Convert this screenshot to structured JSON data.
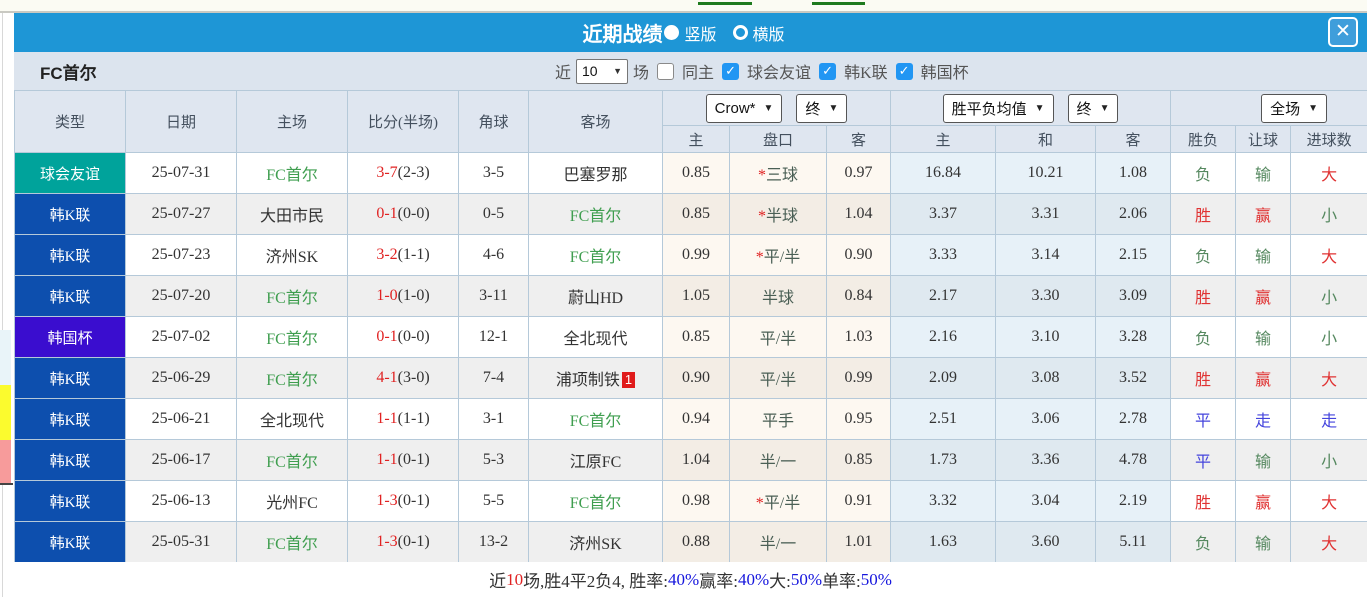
{
  "modal": {
    "title": "近期战绩",
    "view_vertical": "竖版",
    "view_horizontal": "横版",
    "close": "✕"
  },
  "filter": {
    "team": "FC首尔",
    "recent_label": "近",
    "recent_value": "10",
    "matches_label": "场",
    "same_home_label": "同主",
    "leagues": [
      "球会友谊",
      "韩K联",
      "韩国杯"
    ]
  },
  "table": {
    "main_headers": [
      "类型",
      "日期",
      "主场",
      "比分(半场)",
      "角球",
      "客场"
    ],
    "selects": {
      "odds_company": "Crow*",
      "odds_time1": "终",
      "avg_type": "胜平负均值",
      "avg_time": "终",
      "scope": "全场"
    },
    "sub_headers": [
      "主",
      "盘口",
      "客",
      "主",
      "和",
      "客",
      "胜负",
      "让球",
      "进球数"
    ]
  },
  "rows": [
    {
      "type": "球会友谊",
      "type_color": "teal",
      "date": "25-07-31",
      "home": "FC首尔",
      "home_fc": true,
      "score": "3-7",
      "half": "(2-3)",
      "corner": "3-5",
      "away": "巴塞罗那",
      "away_fc": false,
      "away_badge": "",
      "o_home": "0.85",
      "pan_star": true,
      "pan": "三球",
      "o_away": "0.97",
      "avg_home": "16.84",
      "avg_draw": "10.21",
      "avg_away": "1.08",
      "spf": {
        "t": "负",
        "c": "green"
      },
      "rq": {
        "t": "输",
        "c": "green"
      },
      "jq": {
        "t": "大",
        "c": "red"
      }
    },
    {
      "type": "韩K联",
      "type_color": "blue",
      "date": "25-07-27",
      "home": "大田市民",
      "home_fc": false,
      "score": "0-1",
      "half": "(0-0)",
      "corner": "0-5",
      "away": "FC首尔",
      "away_fc": true,
      "away_badge": "",
      "o_home": "0.85",
      "pan_star": true,
      "pan": "半球",
      "o_away": "1.04",
      "avg_home": "3.37",
      "avg_draw": "3.31",
      "avg_away": "2.06",
      "spf": {
        "t": "胜",
        "c": "red"
      },
      "rq": {
        "t": "赢",
        "c": "red"
      },
      "jq": {
        "t": "小",
        "c": "green"
      }
    },
    {
      "type": "韩K联",
      "type_color": "blue",
      "date": "25-07-23",
      "home": "济州SK",
      "home_fc": false,
      "score": "3-2",
      "half": "(1-1)",
      "corner": "4-6",
      "away": "FC首尔",
      "away_fc": true,
      "away_badge": "",
      "o_home": "0.99",
      "pan_star": true,
      "pan": "平/半",
      "o_away": "0.90",
      "avg_home": "3.33",
      "avg_draw": "3.14",
      "avg_away": "2.15",
      "spf": {
        "t": "负",
        "c": "green"
      },
      "rq": {
        "t": "输",
        "c": "green"
      },
      "jq": {
        "t": "大",
        "c": "red"
      }
    },
    {
      "type": "韩K联",
      "type_color": "blue",
      "date": "25-07-20",
      "home": "FC首尔",
      "home_fc": true,
      "score": "1-0",
      "half": "(1-0)",
      "corner": "3-11",
      "away": "蔚山HD",
      "away_fc": false,
      "away_badge": "",
      "o_home": "1.05",
      "pan_star": false,
      "pan": "半球",
      "o_away": "0.84",
      "avg_home": "2.17",
      "avg_draw": "3.30",
      "avg_away": "3.09",
      "spf": {
        "t": "胜",
        "c": "red"
      },
      "rq": {
        "t": "赢",
        "c": "red"
      },
      "jq": {
        "t": "小",
        "c": "green"
      }
    },
    {
      "type": "韩国杯",
      "type_color": "purple",
      "date": "25-07-02",
      "home": "FC首尔",
      "home_fc": true,
      "score": "0-1",
      "half": "(0-0)",
      "corner": "12-1",
      "away": "全北现代",
      "away_fc": false,
      "away_badge": "",
      "o_home": "0.85",
      "pan_star": false,
      "pan": "平/半",
      "o_away": "1.03",
      "avg_home": "2.16",
      "avg_draw": "3.10",
      "avg_away": "3.28",
      "spf": {
        "t": "负",
        "c": "green"
      },
      "rq": {
        "t": "输",
        "c": "green"
      },
      "jq": {
        "t": "小",
        "c": "green"
      }
    },
    {
      "type": "韩K联",
      "type_color": "blue",
      "date": "25-06-29",
      "home": "FC首尔",
      "home_fc": true,
      "score": "4-1",
      "half": "(3-0)",
      "corner": "7-4",
      "away": "浦项制铁",
      "away_fc": false,
      "away_badge": "1",
      "o_home": "0.90",
      "pan_star": false,
      "pan": "平/半",
      "o_away": "0.99",
      "avg_home": "2.09",
      "avg_draw": "3.08",
      "avg_away": "3.52",
      "spf": {
        "t": "胜",
        "c": "red"
      },
      "rq": {
        "t": "赢",
        "c": "red"
      },
      "jq": {
        "t": "大",
        "c": "red"
      }
    },
    {
      "type": "韩K联",
      "type_color": "blue",
      "date": "25-06-21",
      "home": "全北现代",
      "home_fc": false,
      "score": "1-1",
      "half": "(1-1)",
      "corner": "3-1",
      "away": "FC首尔",
      "away_fc": true,
      "away_badge": "",
      "o_home": "0.94",
      "pan_star": false,
      "pan": "平手",
      "o_away": "0.95",
      "avg_home": "2.51",
      "avg_draw": "3.06",
      "avg_away": "2.78",
      "spf": {
        "t": "平",
        "c": "blue"
      },
      "rq": {
        "t": "走",
        "c": "blue"
      },
      "jq": {
        "t": "走",
        "c": "blue"
      }
    },
    {
      "type": "韩K联",
      "type_color": "blue",
      "date": "25-06-17",
      "home": "FC首尔",
      "home_fc": true,
      "score": "1-1",
      "half": "(0-1)",
      "corner": "5-3",
      "away": "江原FC",
      "away_fc": false,
      "away_badge": "",
      "o_home": "1.04",
      "pan_star": false,
      "pan": "半/一",
      "o_away": "0.85",
      "avg_home": "1.73",
      "avg_draw": "3.36",
      "avg_away": "4.78",
      "spf": {
        "t": "平",
        "c": "blue"
      },
      "rq": {
        "t": "输",
        "c": "green"
      },
      "jq": {
        "t": "小",
        "c": "green"
      }
    },
    {
      "type": "韩K联",
      "type_color": "blue",
      "date": "25-06-13",
      "home": "光州FC",
      "home_fc": false,
      "score": "1-3",
      "half": "(0-1)",
      "corner": "5-5",
      "away": "FC首尔",
      "away_fc": true,
      "away_badge": "",
      "o_home": "0.98",
      "pan_star": true,
      "pan": "平/半",
      "o_away": "0.91",
      "avg_home": "3.32",
      "avg_draw": "3.04",
      "avg_away": "2.19",
      "spf": {
        "t": "胜",
        "c": "red"
      },
      "rq": {
        "t": "赢",
        "c": "red"
      },
      "jq": {
        "t": "大",
        "c": "red"
      }
    },
    {
      "type": "韩K联",
      "type_color": "blue",
      "date": "25-05-31",
      "home": "FC首尔",
      "home_fc": true,
      "score": "1-3",
      "half": "(0-1)",
      "corner": "13-2",
      "away": "济州SK",
      "away_fc": false,
      "away_badge": "",
      "o_home": "0.88",
      "pan_star": false,
      "pan": "半/一",
      "o_away": "1.01",
      "avg_home": "1.63",
      "avg_draw": "3.60",
      "avg_away": "5.11",
      "spf": {
        "t": "负",
        "c": "green"
      },
      "rq": {
        "t": "输",
        "c": "green"
      },
      "jq": {
        "t": "大",
        "c": "red"
      }
    }
  ],
  "summary": {
    "segments": [
      {
        "t": "近",
        "c": "dark"
      },
      {
        "t": "10",
        "c": "red"
      },
      {
        "t": "场,胜4平2负4, 胜率:",
        "c": "dark"
      },
      {
        "t": "40%",
        "c": "blue"
      },
      {
        "t": " 赢率:",
        "c": "dark"
      },
      {
        "t": "40%",
        "c": "blue"
      },
      {
        "t": " 大:",
        "c": "dark"
      },
      {
        "t": "50%",
        "c": "blue"
      },
      {
        "t": " 单率:",
        "c": "dark"
      },
      {
        "t": "50%",
        "c": "blue"
      }
    ]
  }
}
